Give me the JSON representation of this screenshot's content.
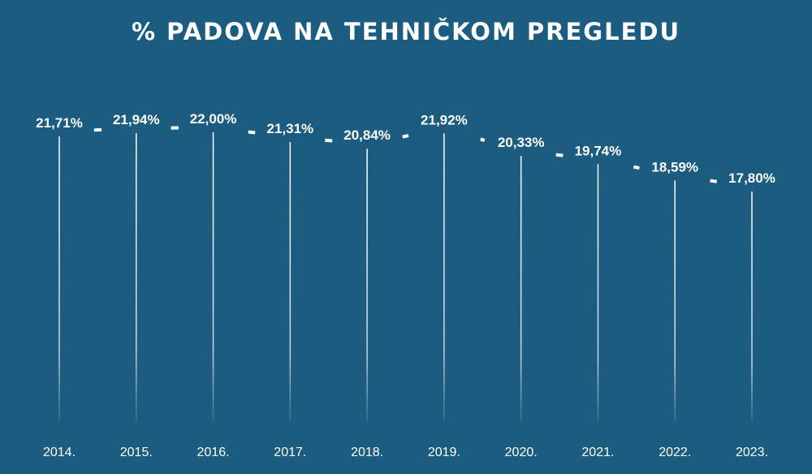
{
  "chart_data": {
    "type": "line",
    "title": "% PADOVA NA TEHNIČKOM PREGLEDU",
    "categories": [
      "2014.",
      "2015.",
      "2016.",
      "2017.",
      "2018.",
      "2019.",
      "2020.",
      "2021.",
      "2022.",
      "2023."
    ],
    "values": [
      21.71,
      21.94,
      22.0,
      21.31,
      20.84,
      21.92,
      20.33,
      19.74,
      18.59,
      17.8
    ],
    "value_labels": [
      "21,71%",
      "21,94%",
      "22,00%",
      "21,31%",
      "20,84%",
      "21,92%",
      "20,33%",
      "19,74%",
      "18,59%",
      "17,80%"
    ],
    "line_style": "dashed",
    "drop_lines": true,
    "grid": false,
    "colors": {
      "background": "#1b5c80",
      "line": "#ffffff",
      "text": "#ffffff"
    }
  }
}
